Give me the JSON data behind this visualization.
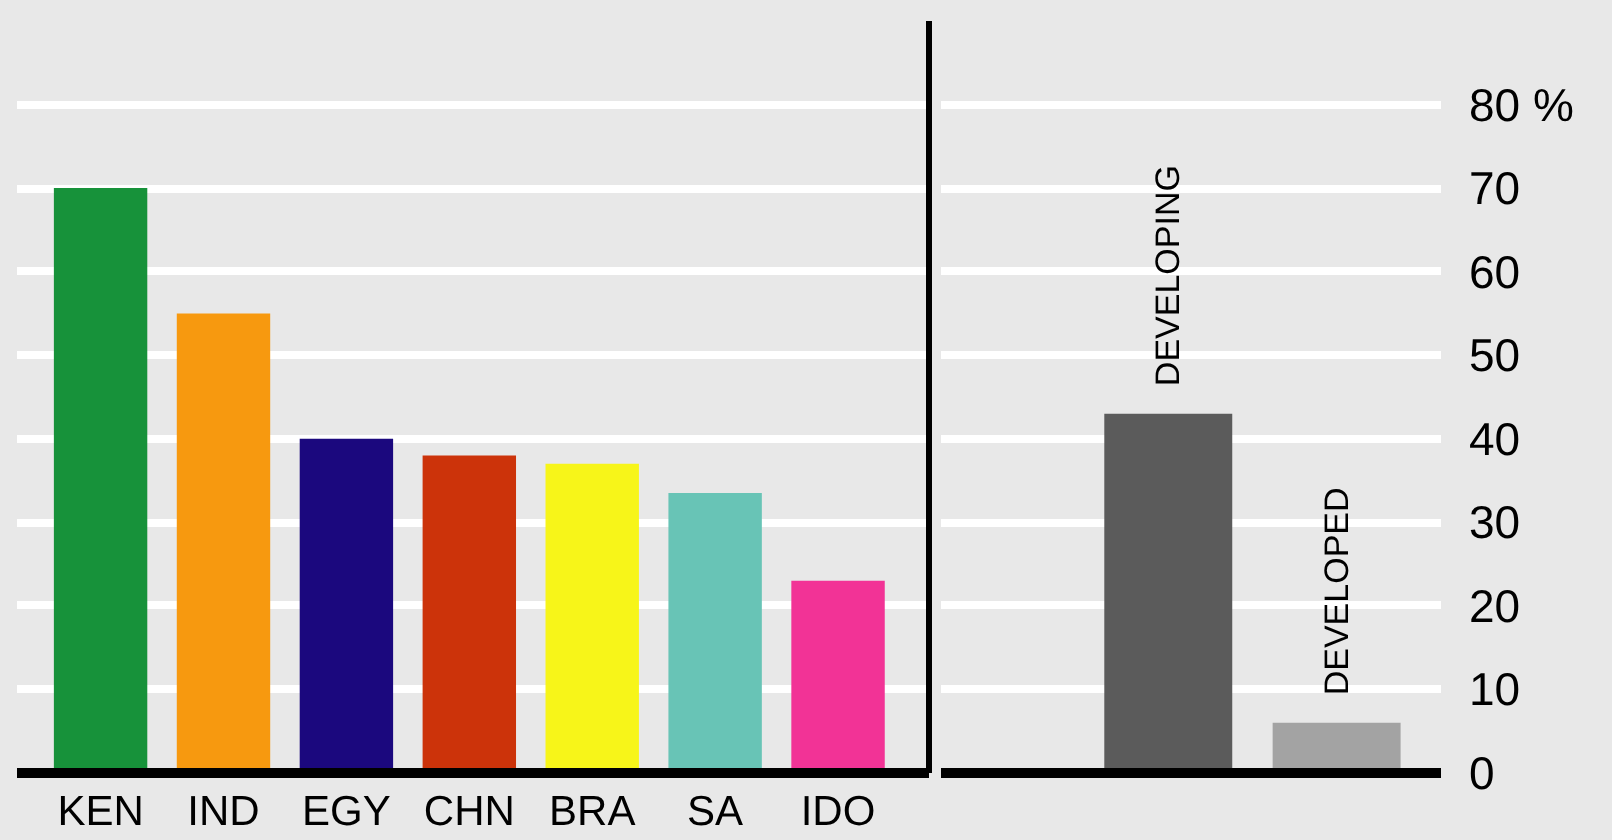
{
  "chart_data": [
    {
      "type": "bar",
      "categories": [
        "KEN",
        "IND",
        "EGY",
        "CHN",
        "BRA",
        "SA",
        "IDO"
      ],
      "values": [
        70,
        55,
        40,
        38,
        37,
        33.5,
        23
      ],
      "colors": [
        "#17923a",
        "#f7990f",
        "#1b087e",
        "#cc330a",
        "#f7f519",
        "#68c4b6",
        "#f23396"
      ],
      "ylim": [
        0,
        90
      ],
      "yticks": [
        0,
        10,
        20,
        30,
        40,
        50,
        60,
        70,
        80
      ],
      "grid": "y",
      "tick_labels": "x"
    },
    {
      "type": "bar",
      "categories": [
        "DEVELOPING",
        "DEVELOPED"
      ],
      "values": [
        43,
        6
      ],
      "colors": [
        "#5b5b5b",
        "#a3a3a3"
      ],
      "ylim": [
        0,
        90
      ],
      "yticks": [
        0,
        10,
        20,
        30,
        40,
        50,
        60,
        70,
        {
          "value": 80,
          "label": "80 %"
        }
      ],
      "grid": "y",
      "tick_labels": "y"
    }
  ]
}
